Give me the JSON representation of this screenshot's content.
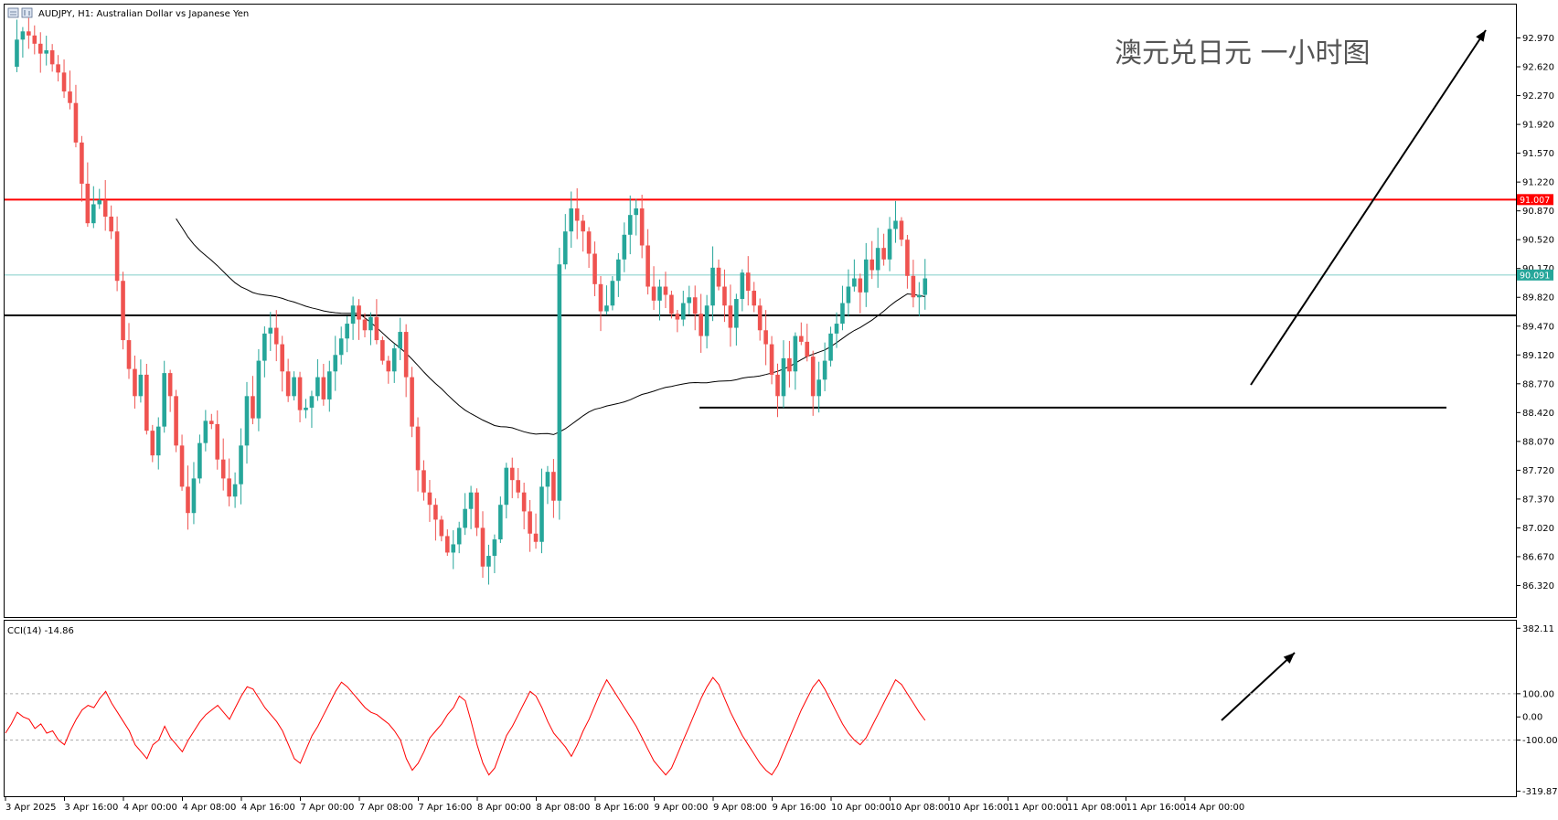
{
  "header": {
    "symbol_label": "AUDJPY, H1:  Australian Dollar vs Japanese Yen",
    "annotation": "澳元兑日元 一小时图"
  },
  "colors": {
    "bull": "#26a69a",
    "bear": "#ef5350",
    "resistance": "#ff0000",
    "current_price": "#8fd3cf",
    "cci": "#ff0000",
    "ma": "#000000"
  },
  "chart_data": [
    {
      "type": "candlestick",
      "symbol": "AUDJPY",
      "timeframe": "H1",
      "ylim": [
        85.97,
        93.32
      ],
      "price_ticks": [
        "92.970",
        "92.620",
        "92.270",
        "91.920",
        "91.570",
        "91.220",
        "90.870",
        "90.520",
        "90.170",
        "89.820",
        "89.470",
        "89.120",
        "88.770",
        "88.420",
        "88.070",
        "87.720",
        "87.370",
        "87.020",
        "86.670",
        "86.320"
      ],
      "time_labels": [
        "3 Apr 2025",
        "3 Apr 16:00",
        "4 Apr 00:00",
        "4 Apr 08:00",
        "4 Apr 16:00",
        "7 Apr 00:00",
        "7 Apr 08:00",
        "7 Apr 16:00",
        "8 Apr 00:00",
        "8 Apr 08:00",
        "8 Apr 16:00",
        "9 Apr 00:00",
        "9 Apr 08:00",
        "9 Apr 16:00",
        "10 Apr 00:00",
        "10 Apr 08:00",
        "10 Apr 16:00",
        "11 Apr 00:00",
        "11 Apr 08:00",
        "11 Apr 16:00",
        "14 Apr 00:00"
      ],
      "resistance_level": 91.007,
      "resistance_label": "91.007",
      "current_price": 90.091,
      "current_price_label": "90.091",
      "support_level_upper": 89.6,
      "support_level_lower": 88.48,
      "close_path": [
        92.62,
        92.95,
        93.05,
        93.0,
        92.9,
        92.78,
        92.82,
        92.65,
        92.55,
        92.32,
        92.18,
        91.7,
        91.2,
        90.72,
        90.95,
        91.0,
        90.8,
        90.62,
        90.02,
        89.3,
        88.95,
        88.62,
        88.88,
        88.2,
        87.9,
        88.25,
        88.9,
        88.62,
        88.02,
        87.52,
        87.2,
        87.62,
        88.05,
        88.32,
        88.28,
        87.85,
        87.62,
        87.4,
        87.55,
        88.02,
        88.62,
        88.35,
        89.05,
        89.38,
        89.45,
        89.25,
        88.92,
        88.62,
        88.85,
        88.45,
        88.48,
        88.62,
        88.85,
        88.58,
        88.92,
        89.12,
        89.32,
        89.5,
        89.72,
        89.55,
        89.42,
        89.58,
        89.3,
        89.05,
        88.92,
        89.2,
        89.4,
        88.85,
        88.25,
        87.72,
        87.45,
        87.3,
        87.12,
        86.92,
        86.72,
        86.82,
        87.02,
        87.25,
        87.45,
        87.02,
        86.55,
        86.68,
        86.88,
        87.3,
        87.75,
        87.6,
        87.45,
        87.22,
        86.95,
        86.85,
        87.52,
        87.7,
        87.35,
        90.22,
        90.62,
        90.9,
        90.75,
        90.62,
        90.35,
        89.98,
        89.65,
        89.72,
        90.02,
        90.28,
        90.58,
        90.82,
        90.9,
        90.45,
        89.95,
        89.78,
        89.95,
        89.85,
        89.62,
        89.55,
        89.75,
        89.82,
        89.62,
        89.35,
        89.72,
        90.18,
        89.95,
        89.72,
        89.45,
        89.8,
        90.12,
        89.9,
        89.72,
        89.42,
        89.25,
        88.88,
        88.62,
        89.08,
        88.92,
        89.35,
        89.28,
        89.1,
        88.62,
        88.82,
        89.05,
        89.38,
        89.5,
        89.75,
        89.95,
        90.05,
        89.88,
        90.28,
        90.15,
        90.42,
        90.28,
        90.65,
        90.75,
        90.52,
        90.08,
        89.82,
        89.85,
        90.05
      ]
    },
    {
      "type": "line",
      "indicator_label": "CCI(14) -14.86",
      "ylim": [
        -330,
        395
      ],
      "y_ticks": [
        "382.11",
        "100.00",
        "0.00",
        "-100.00",
        "-319.87"
      ],
      "levels": [
        100,
        -100
      ],
      "values": [
        -70,
        -30,
        20,
        0,
        -10,
        -50,
        -30,
        -70,
        -60,
        -100,
        -120,
        -60,
        -10,
        30,
        50,
        40,
        80,
        110,
        60,
        20,
        -20,
        -60,
        -120,
        -150,
        -180,
        -120,
        -100,
        -40,
        -90,
        -120,
        -150,
        -100,
        -60,
        -20,
        10,
        30,
        50,
        20,
        -10,
        40,
        90,
        130,
        120,
        80,
        40,
        10,
        -20,
        -60,
        -120,
        -180,
        -200,
        -140,
        -80,
        -40,
        10,
        60,
        110,
        150,
        130,
        100,
        70,
        40,
        20,
        10,
        -10,
        -30,
        -60,
        -100,
        -180,
        -230,
        -200,
        -150,
        -90,
        -60,
        -30,
        10,
        40,
        90,
        70,
        -20,
        -120,
        -200,
        -250,
        -220,
        -150,
        -80,
        -40,
        10,
        60,
        110,
        90,
        40,
        -20,
        -70,
        -100,
        -130,
        -170,
        -120,
        -60,
        -10,
        50,
        110,
        160,
        120,
        80,
        40,
        0,
        -40,
        -90,
        -140,
        -190,
        -220,
        -250,
        -220,
        -160,
        -100,
        -40,
        20,
        80,
        130,
        170,
        140,
        80,
        20,
        -30,
        -80,
        -120,
        -160,
        -200,
        -230,
        -250,
        -210,
        -150,
        -90,
        -30,
        30,
        80,
        130,
        160,
        120,
        70,
        20,
        -30,
        -70,
        -100,
        -120,
        -90,
        -40,
        10,
        60,
        110,
        160,
        140,
        100,
        60,
        20,
        -14.86
      ]
    }
  ]
}
